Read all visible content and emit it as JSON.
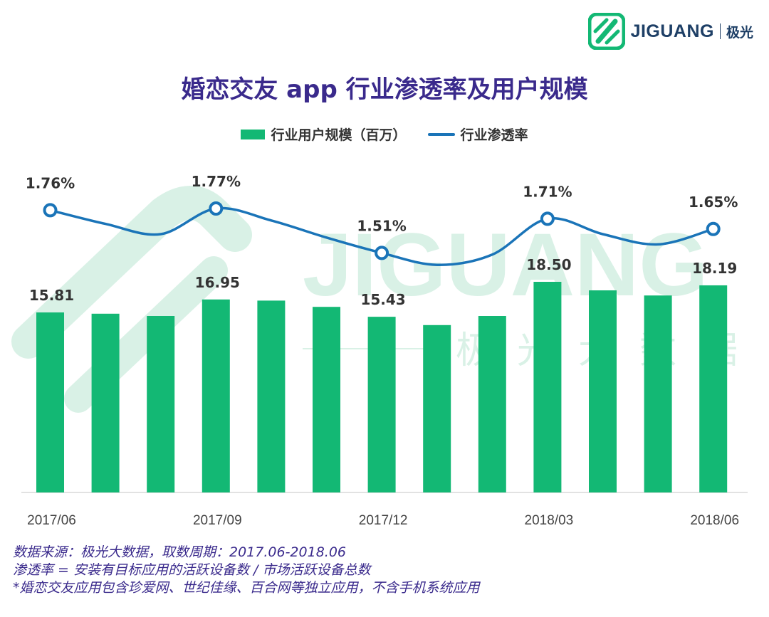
{
  "brand": {
    "name": "JIGUANG",
    "cn": "极光",
    "accent": "#1e3f66",
    "logo_color": "#13b874"
  },
  "watermark": {
    "word": "JIGUANG",
    "chars": [
      "极",
      "光",
      "大",
      "数",
      "据"
    ],
    "color": "#d9f1e6"
  },
  "colors": {
    "bar": "#13b874",
    "line": "#1a74b8",
    "title": "#3a2a8c",
    "label": "#333333"
  },
  "chart_data": {
    "type": "bar",
    "title": "婚恋交友 app 行业渗透率及用户规模",
    "categories": [
      "2017/06",
      "2017/07",
      "2017/08",
      "2017/09",
      "2017/10",
      "2017/11",
      "2017/12",
      "2018/01",
      "2018/02",
      "2018/03",
      "2018/04",
      "2018/05",
      "2018/06"
    ],
    "tick_labels": [
      "2017/06",
      "",
      "",
      "2017/09",
      "",
      "",
      "2017/12",
      "",
      "",
      "2018/03",
      "",
      "",
      "2018/06"
    ],
    "series": [
      {
        "name": "行业用户规模（百万）",
        "type": "bar",
        "values": [
          15.81,
          15.7,
          15.5,
          16.95,
          16.85,
          16.3,
          15.43,
          14.7,
          15.5,
          18.5,
          17.75,
          17.3,
          18.19
        ],
        "labels": [
          "15.81",
          "",
          "",
          "16.95",
          "",
          "",
          "15.43",
          "",
          "",
          "18.50",
          "",
          "",
          "18.19"
        ]
      },
      {
        "name": "行业渗透率",
        "type": "line",
        "values": [
          1.76,
          1.68,
          1.62,
          1.77,
          1.7,
          1.6,
          1.51,
          1.44,
          1.5,
          1.71,
          1.62,
          1.56,
          1.65
        ],
        "labels": [
          "1.76%",
          "",
          "",
          "1.77%",
          "",
          "",
          "1.51%",
          "",
          "",
          "1.71%",
          "",
          "",
          "1.65%"
        ]
      }
    ],
    "legend": [
      "行业用户规模（百万）",
      "行业渗透率"
    ],
    "xlabel": "",
    "ylabel": "",
    "ylim": [
      0,
      25
    ],
    "y2lim": [
      0,
      2.5
    ],
    "grid": false,
    "legend_position": "top-center"
  },
  "notes": [
    "数据来源：极光大数据，取数周期：2017.06-2018.06",
    "渗透率 = 安装有目标应用的活跃设备数 / 市场活跃设备总数",
    " *婚恋交友应用包含珍爱网、世纪佳缘、百合网等独立应用，不含手机系统应用"
  ]
}
